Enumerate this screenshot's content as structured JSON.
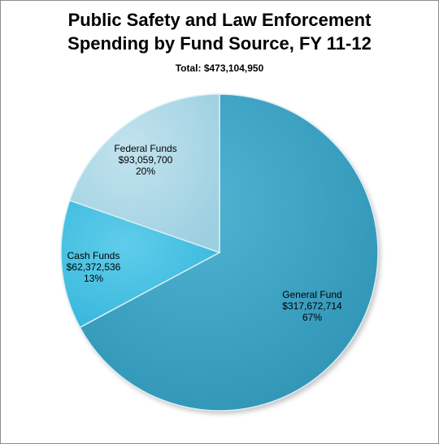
{
  "chart_data": {
    "type": "pie",
    "title_lines": [
      "Public Safety and Law Enforcement",
      "Spending by Fund Source, FY 11-12"
    ],
    "subtitle": "Total: $473,104,950",
    "slices": [
      {
        "name": "General Fund",
        "value": 317672714,
        "value_label": "$317,672,714",
        "percent_label": "67%",
        "color": "#2f93b4",
        "highlight": "#4fb4d2"
      },
      {
        "name": "Cash Funds",
        "value": 62372536,
        "value_label": "$62,372,536",
        "percent_label": "13%",
        "color": "#35b6dc",
        "highlight": "#5fcdea"
      },
      {
        "name": "Federal Funds",
        "value": 93059700,
        "value_label": "$93,059,700",
        "percent_label": "20%",
        "color": "#9ccfe0",
        "highlight": "#c2e3ee"
      }
    ],
    "start_angle": "12 o'clock",
    "direction": "clockwise",
    "legend": "none"
  }
}
